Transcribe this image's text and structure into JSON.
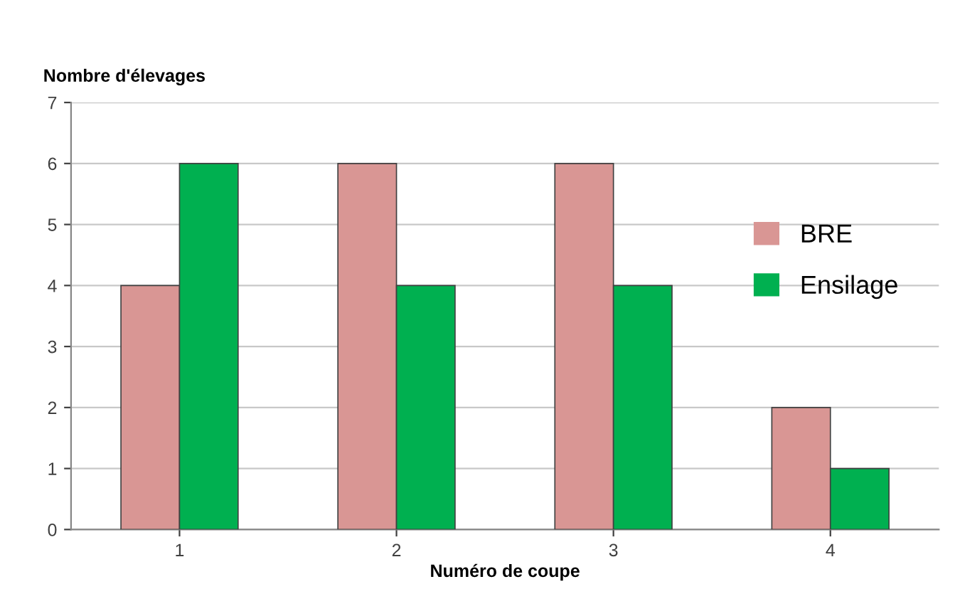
{
  "chart_data": {
    "type": "bar",
    "ylabel": "Nombre d'élevages",
    "xlabel": "Numéro de coupe",
    "categories": [
      "1",
      "2",
      "3",
      "4"
    ],
    "series": [
      {
        "name": "BRE",
        "color": "#d99694",
        "values": [
          4,
          6,
          6,
          2
        ]
      },
      {
        "name": "Ensilage",
        "color": "#00b050",
        "values": [
          6,
          4,
          4,
          1
        ]
      }
    ],
    "ylim": [
      0,
      7
    ],
    "yticks": [
      0,
      1,
      2,
      3,
      4,
      5,
      6,
      7
    ],
    "grid": "y",
    "legend": "right"
  }
}
